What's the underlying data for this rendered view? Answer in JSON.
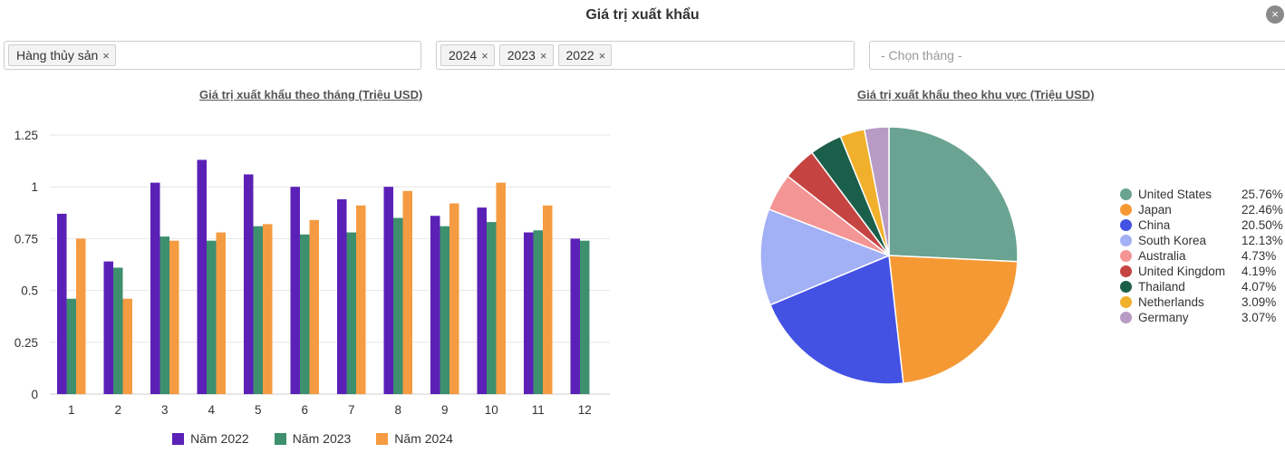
{
  "header": {
    "title": "Giá trị xuất khẩu",
    "close_symbol": "×"
  },
  "filters": {
    "product_tags": [
      {
        "label": "Hàng thủy sản"
      }
    ],
    "year_tags": [
      {
        "label": "2024"
      },
      {
        "label": "2023"
      },
      {
        "label": "2022"
      }
    ],
    "month_placeholder": "- Chọn tháng -",
    "remove_symbol": "×"
  },
  "colors": {
    "year_2022": "#5b21b6",
    "year_2023": "#3d8f6e",
    "year_2024": "#f59b42",
    "grid": "#e6e6e6",
    "axis_text": "#333333"
  },
  "chart_data": [
    {
      "type": "bar",
      "title": "Giá trị xuất khẩu theo tháng (Triệu USD)",
      "xlabel": "",
      "ylabel": "",
      "categories": [
        "1",
        "2",
        "3",
        "4",
        "5",
        "6",
        "7",
        "8",
        "9",
        "10",
        "11",
        "12"
      ],
      "ylim": [
        0,
        1.25
      ],
      "yticks": [
        {
          "value": 1.25,
          "label": "1.25"
        },
        {
          "value": 1,
          "label": "1"
        },
        {
          "value": 0.75,
          "label": "0.75"
        },
        {
          "value": 0.5,
          "label": "0.5"
        },
        {
          "value": 0.25,
          "label": "0.25"
        },
        {
          "value": 0,
          "label": "0"
        }
      ],
      "grid": true,
      "legend_position": "bottom",
      "series": [
        {
          "name": "Năm 2022",
          "color": "#5b21b6",
          "values": [
            0.87,
            0.64,
            1.02,
            1.13,
            1.06,
            1.0,
            0.94,
            1.0,
            0.86,
            0.9,
            0.78,
            0.75
          ]
        },
        {
          "name": "Năm 2023",
          "color": "#3d8f6e",
          "values": [
            0.46,
            0.61,
            0.76,
            0.74,
            0.81,
            0.77,
            0.78,
            0.85,
            0.81,
            0.83,
            0.79,
            0.74
          ]
        },
        {
          "name": "Năm 2024",
          "color": "#f59b42",
          "values": [
            0.75,
            0.46,
            0.74,
            0.78,
            0.82,
            0.84,
            0.91,
            0.98,
            0.92,
            1.02,
            0.91,
            null
          ]
        }
      ]
    },
    {
      "type": "pie",
      "title": "Giá trị xuất khẩu theo khu vực (Triệu USD)",
      "legend_position": "right",
      "slices": [
        {
          "label": "United States",
          "value": 25.76,
          "pct_label": "25.76%",
          "color": "#6aa391"
        },
        {
          "label": "Japan",
          "value": 22.46,
          "pct_label": "22.46%",
          "color": "#f59934"
        },
        {
          "label": "China",
          "value": 20.5,
          "pct_label": "20.50%",
          "color": "#4352e3"
        },
        {
          "label": "South Korea",
          "value": 12.13,
          "pct_label": "12.13%",
          "color": "#a2b0f6"
        },
        {
          "label": "Australia",
          "value": 4.73,
          "pct_label": "4.73%",
          "color": "#f49595"
        },
        {
          "label": "United Kingdom",
          "value": 4.19,
          "pct_label": "4.19%",
          "color": "#c54442"
        },
        {
          "label": "Thailand",
          "value": 4.07,
          "pct_label": "4.07%",
          "color": "#1b5f4a"
        },
        {
          "label": "Netherlands",
          "value": 3.09,
          "pct_label": "3.09%",
          "color": "#f1b02c"
        },
        {
          "label": "Germany",
          "value": 3.07,
          "pct_label": "3.07%",
          "color": "#b79bc5"
        }
      ]
    }
  ]
}
